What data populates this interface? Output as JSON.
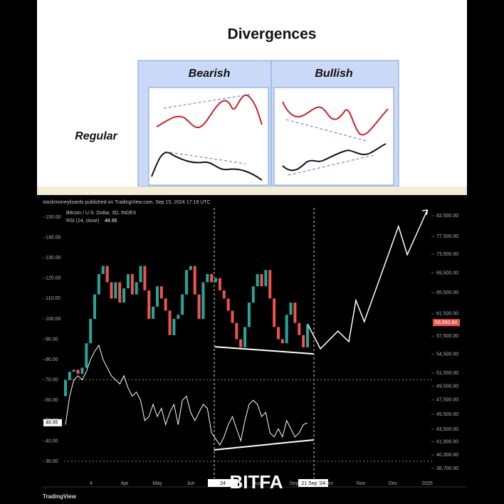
{
  "diagram": {
    "title": "Divergences",
    "columns": [
      "Bearish",
      "Bullish"
    ],
    "row": "Regular"
  },
  "chart_data": {
    "type": "candlestick",
    "publisher": "stockmoneylizards published on TradingView.com, Sep 15, 2024 17:19 UTC",
    "title": "Bitcoin / U.S. Dollar, 3D, INDEX",
    "indicator": "RSI (14, close)",
    "indicator_value": 48.95,
    "opens": [
      62,
      70,
      74,
      75,
      73,
      76,
      88,
      100,
      112,
      122,
      126,
      118,
      110,
      118,
      108,
      115,
      122,
      112,
      118,
      126,
      114,
      100,
      106,
      116,
      110,
      104,
      92,
      100,
      102,
      112,
      124,
      126,
      112,
      100,
      118,
      122,
      118,
      120,
      114,
      110,
      104,
      98,
      90,
      86,
      96,
      108,
      116,
      122,
      116,
      124,
      110,
      96,
      90,
      88,
      102,
      108,
      98,
      92,
      86
    ],
    "closes": [
      70,
      74,
      75,
      73,
      76,
      88,
      100,
      112,
      122,
      126,
      118,
      110,
      118,
      108,
      115,
      122,
      112,
      118,
      126,
      114,
      100,
      106,
      116,
      110,
      104,
      92,
      100,
      102,
      112,
      124,
      126,
      112,
      100,
      118,
      122,
      118,
      120,
      114,
      110,
      104,
      98,
      90,
      86,
      96,
      108,
      116,
      122,
      116,
      124,
      110,
      96,
      90,
      88,
      102,
      108,
      98,
      92,
      86,
      97
    ],
    "rsi": [
      48,
      62,
      70,
      72,
      70,
      74,
      80,
      84,
      87,
      80,
      76,
      72,
      70,
      68,
      72,
      66,
      62,
      64,
      60,
      50,
      52,
      58,
      52,
      56,
      48,
      54,
      58,
      48,
      60,
      62,
      54,
      50,
      54,
      58,
      56,
      44,
      41,
      38,
      42,
      48,
      52,
      46,
      40,
      50,
      58,
      60,
      58,
      52,
      54,
      44,
      42,
      46,
      42,
      50,
      46,
      42,
      44,
      48,
      48.95
    ],
    "projection": {
      "x": [
        58,
        61.1,
        65.3,
        67.9,
        69.6,
        71.6,
        79.8,
        81.9,
        86.7
      ],
      "values": [
        97.5,
        85.3,
        94.0,
        88.8,
        109.1,
        98.6,
        145.5,
        131.5,
        153.5
      ]
    },
    "price_divergence": {
      "x": [
        35.8,
        59.4
      ],
      "values": [
        86.3,
        82.8
      ]
    },
    "rsi_divergence": {
      "x": [
        35.6,
        59.4
      ],
      "values": [
        35.6,
        40.5
      ]
    },
    "ylim": [
      21.6,
      153.5
    ],
    "yticks": [
      {
        "value": 30,
        "label": "30.00"
      },
      {
        "value": 40,
        "label": "40.00"
      },
      {
        "value": 50,
        "label": "50.00"
      },
      {
        "value": 60,
        "label": "60.00"
      },
      {
        "value": 70,
        "label": "70.00"
      },
      {
        "value": 80,
        "label": "80.00"
      },
      {
        "value": 90,
        "label": "90.00"
      },
      {
        "value": 100,
        "label": "100.00"
      },
      {
        "value": 110,
        "label": "110.00"
      },
      {
        "value": 120,
        "label": "120.00"
      },
      {
        "value": 130,
        "label": "130.00"
      },
      {
        "value": 140,
        "label": "140.00"
      },
      {
        "value": 150,
        "label": "150.00"
      }
    ],
    "y2lim": [
      37560,
      83920
    ],
    "y2log": true,
    "y2ticks": [
      {
        "value": 82500,
        "label": "82,500.00"
      },
      {
        "value": 77500,
        "label": "77,500.00"
      },
      {
        "value": 73500,
        "label": "73,500.00"
      },
      {
        "value": 69500,
        "label": "69,500.00"
      },
      {
        "value": 65500,
        "label": "65,500.00"
      },
      {
        "value": 61500,
        "label": "61,500.00"
      },
      {
        "value": 57500,
        "label": "57,500.00"
      },
      {
        "value": 54500,
        "label": "54,500.00"
      },
      {
        "value": 51500,
        "label": "51,500.00"
      },
      {
        "value": 49500,
        "label": "49,500.00"
      },
      {
        "value": 47500,
        "label": "47,500.00"
      },
      {
        "value": 45500,
        "label": "45,500.00"
      },
      {
        "value": 43500,
        "label": "43,500.00"
      },
      {
        "value": 41900,
        "label": "41,900.00"
      },
      {
        "value": 40300,
        "label": "40,300.00"
      },
      {
        "value": 38700,
        "label": "38,700.00"
      }
    ],
    "last_price": {
      "value": 59890.84,
      "label": "59,890.84"
    },
    "x_labels": [
      "4",
      "Apr",
      "May",
      "Jun",
      "24",
      "Aug",
      "Sep",
      "21 Sep '24",
      "Oct",
      "Nov",
      "Dec",
      "2025"
    ],
    "up_color": "#26a69a",
    "down_color": "#ef5350"
  },
  "footer": {
    "brand": "TradingView",
    "watermark": "BITFA"
  }
}
